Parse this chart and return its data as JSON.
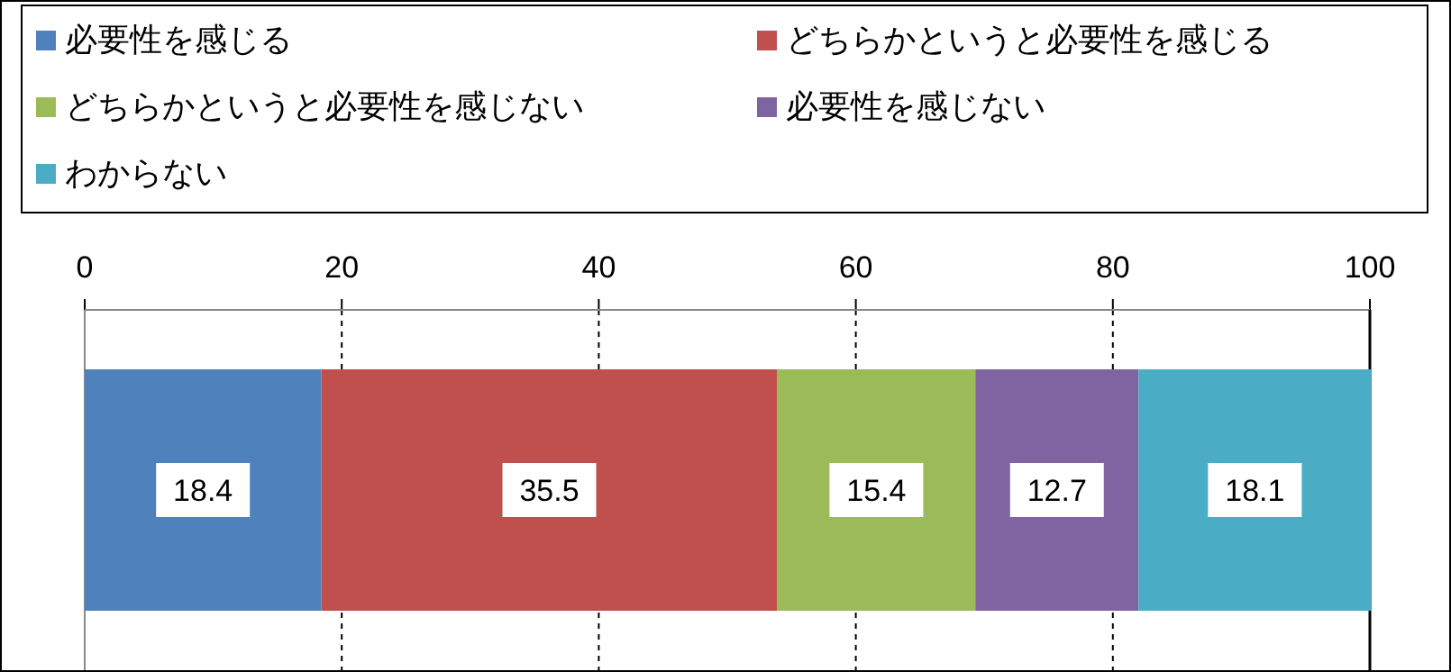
{
  "chart_data": {
    "type": "bar",
    "orientation": "horizontal",
    "stacked": true,
    "categories": [
      null
    ],
    "series": [
      {
        "name": "必要性を感じる",
        "color": "#4f81bd",
        "values": [
          18.4
        ]
      },
      {
        "name": "どちらかというと必要性を感じる",
        "color": "#c0504d",
        "values": [
          35.5
        ]
      },
      {
        "name": "どちらかというと必要性を感じない",
        "color": "#9bbb59",
        "values": [
          15.4
        ]
      },
      {
        "name": "必要性を感じない",
        "color": "#8064a2",
        "values": [
          12.7
        ]
      },
      {
        "name": "わからない",
        "color": "#4bacc6",
        "values": [
          18.1
        ]
      }
    ],
    "xlim": [
      0,
      100
    ],
    "xticks": [
      0,
      20,
      40,
      60,
      80,
      100
    ],
    "grid": "x",
    "legend": "top",
    "data_labels": true
  }
}
